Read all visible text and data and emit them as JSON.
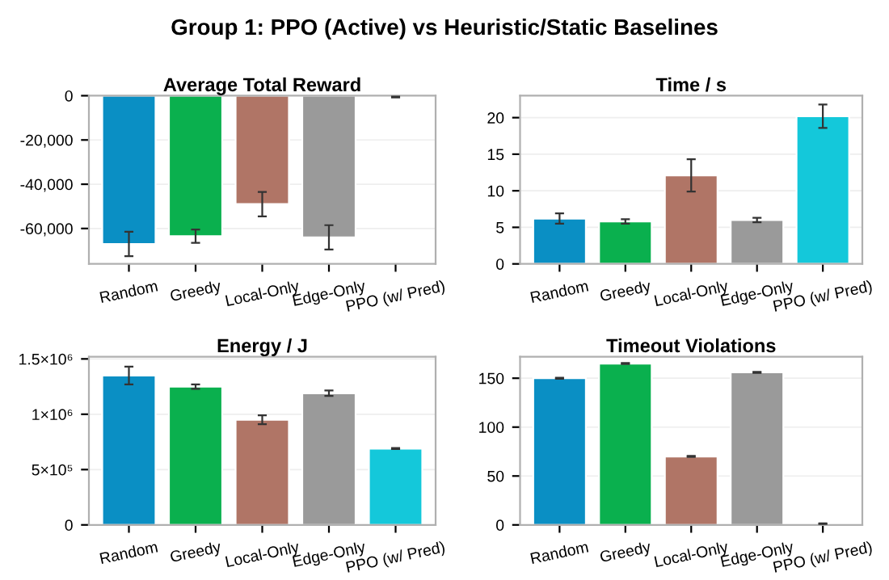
{
  "chart_data": [
    {
      "type": "bar",
      "title": "Average Total Reward",
      "annotations": [
        "Group 1: PPO (Active) vs Heuristic/Static Baselines"
      ],
      "categories": [
        "Random",
        "Greedy",
        "Local-Only",
        "Edge-Only",
        "PPO (w/ Pred)"
      ],
      "colors": [
        "#0a8fc4",
        "#0ab04e",
        "#b07566",
        "#9a9a9a",
        "#14c8da"
      ],
      "values": [
        -67000,
        -63500,
        -49000,
        -64000,
        -500
      ],
      "errors": [
        5500,
        3000,
        5500,
        5500,
        300
      ],
      "ylim": [
        -76000,
        0
      ],
      "yticks": [
        {
          "value": -60000,
          "label": "-60,000"
        },
        {
          "value": -40000,
          "label": "-40,000"
        },
        {
          "value": -20000,
          "label": "-20,000"
        },
        0
      ],
      "grid": "y"
    },
    {
      "type": "bar",
      "title": "Time / s",
      "categories": [
        "Random",
        "Greedy",
        "Local-Only",
        "Edge-Only",
        "PPO (w/ Pred)"
      ],
      "colors": [
        "#0a8fc4",
        "#0ab04e",
        "#b07566",
        "#9a9a9a",
        "#14c8da"
      ],
      "values": [
        6.2,
        5.8,
        12.1,
        6.0,
        20.2
      ],
      "errors": [
        0.7,
        0.3,
        2.2,
        0.3,
        1.6
      ],
      "ylim": [
        0,
        23
      ],
      "yticks": [
        0,
        5,
        10,
        15,
        20
      ],
      "grid": "y"
    },
    {
      "type": "bar",
      "title": "Energy / J",
      "categories": [
        "Random",
        "Greedy",
        "Local-Only",
        "Edge-Only",
        "PPO (w/ Pred)"
      ],
      "colors": [
        "#0a8fc4",
        "#0ab04e",
        "#b07566",
        "#9a9a9a",
        "#14c8da"
      ],
      "values": [
        1350000,
        1250000,
        950000,
        1190000,
        690000
      ],
      "errors": [
        80000,
        20000,
        40000,
        25000,
        5000
      ],
      "ylim": [
        0,
        1520000
      ],
      "yticks": [
        0,
        {
          "value": 500000,
          "label": "5×10⁵"
        },
        {
          "value": 1000000,
          "label": "1×10⁶"
        },
        {
          "value": 1500000,
          "label": "1.5×10⁶"
        }
      ],
      "grid": "y"
    },
    {
      "type": "bar",
      "title": "Timeout Violations",
      "categories": [
        "Random",
        "Greedy",
        "Local-Only",
        "Edge-Only",
        "PPO (w/ Pred)"
      ],
      "colors": [
        "#0a8fc4",
        "#0ab04e",
        "#b07566",
        "#9a9a9a",
        "#14c8da"
      ],
      "values": [
        150,
        165,
        70,
        156,
        1
      ],
      "errors": [
        0.5,
        0.5,
        0.5,
        0.5,
        0.5
      ],
      "ylim": [
        0,
        172
      ],
      "yticks": [
        0,
        50,
        100,
        150
      ],
      "grid": "y"
    }
  ]
}
